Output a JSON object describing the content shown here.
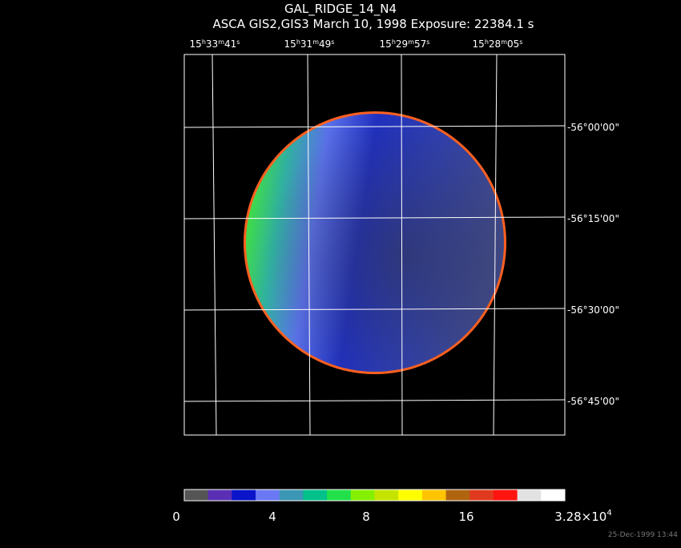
{
  "header": {
    "title": "GAL_RIDGE_14_N4",
    "subtitle": "ASCA GIS2,GIS3 March 10, 1998 Exposure: 22384.1 s"
  },
  "ra_units": [
    "h",
    "m",
    "s"
  ],
  "ra_labels": [
    [
      "15",
      "33",
      "41"
    ],
    [
      "15",
      "31",
      "49"
    ],
    [
      "15",
      "29",
      "57"
    ],
    [
      "15",
      "28",
      "05"
    ]
  ],
  "dec_labels": [
    "-56°00'00\"",
    "-56°15'00\"",
    "-56°30'00\"",
    "-56°45'00\""
  ],
  "colorbar": {
    "colors": [
      "#555555",
      "#5a2fb4",
      "#0a14c8",
      "#6a78f4",
      "#3a96b4",
      "#00c08a",
      "#22e04a",
      "#84f000",
      "#c4e400",
      "#ffff00",
      "#ffc400",
      "#b06410",
      "#e03a1e",
      "#ff1410",
      "#e2e2e2",
      "#ffffff"
    ],
    "labels": [
      "0",
      "4",
      "8",
      "16"
    ],
    "max_label": {
      "base": "3.28×10",
      "exp": "4"
    }
  },
  "timestamp": "25-Dec-1999 13:44"
}
